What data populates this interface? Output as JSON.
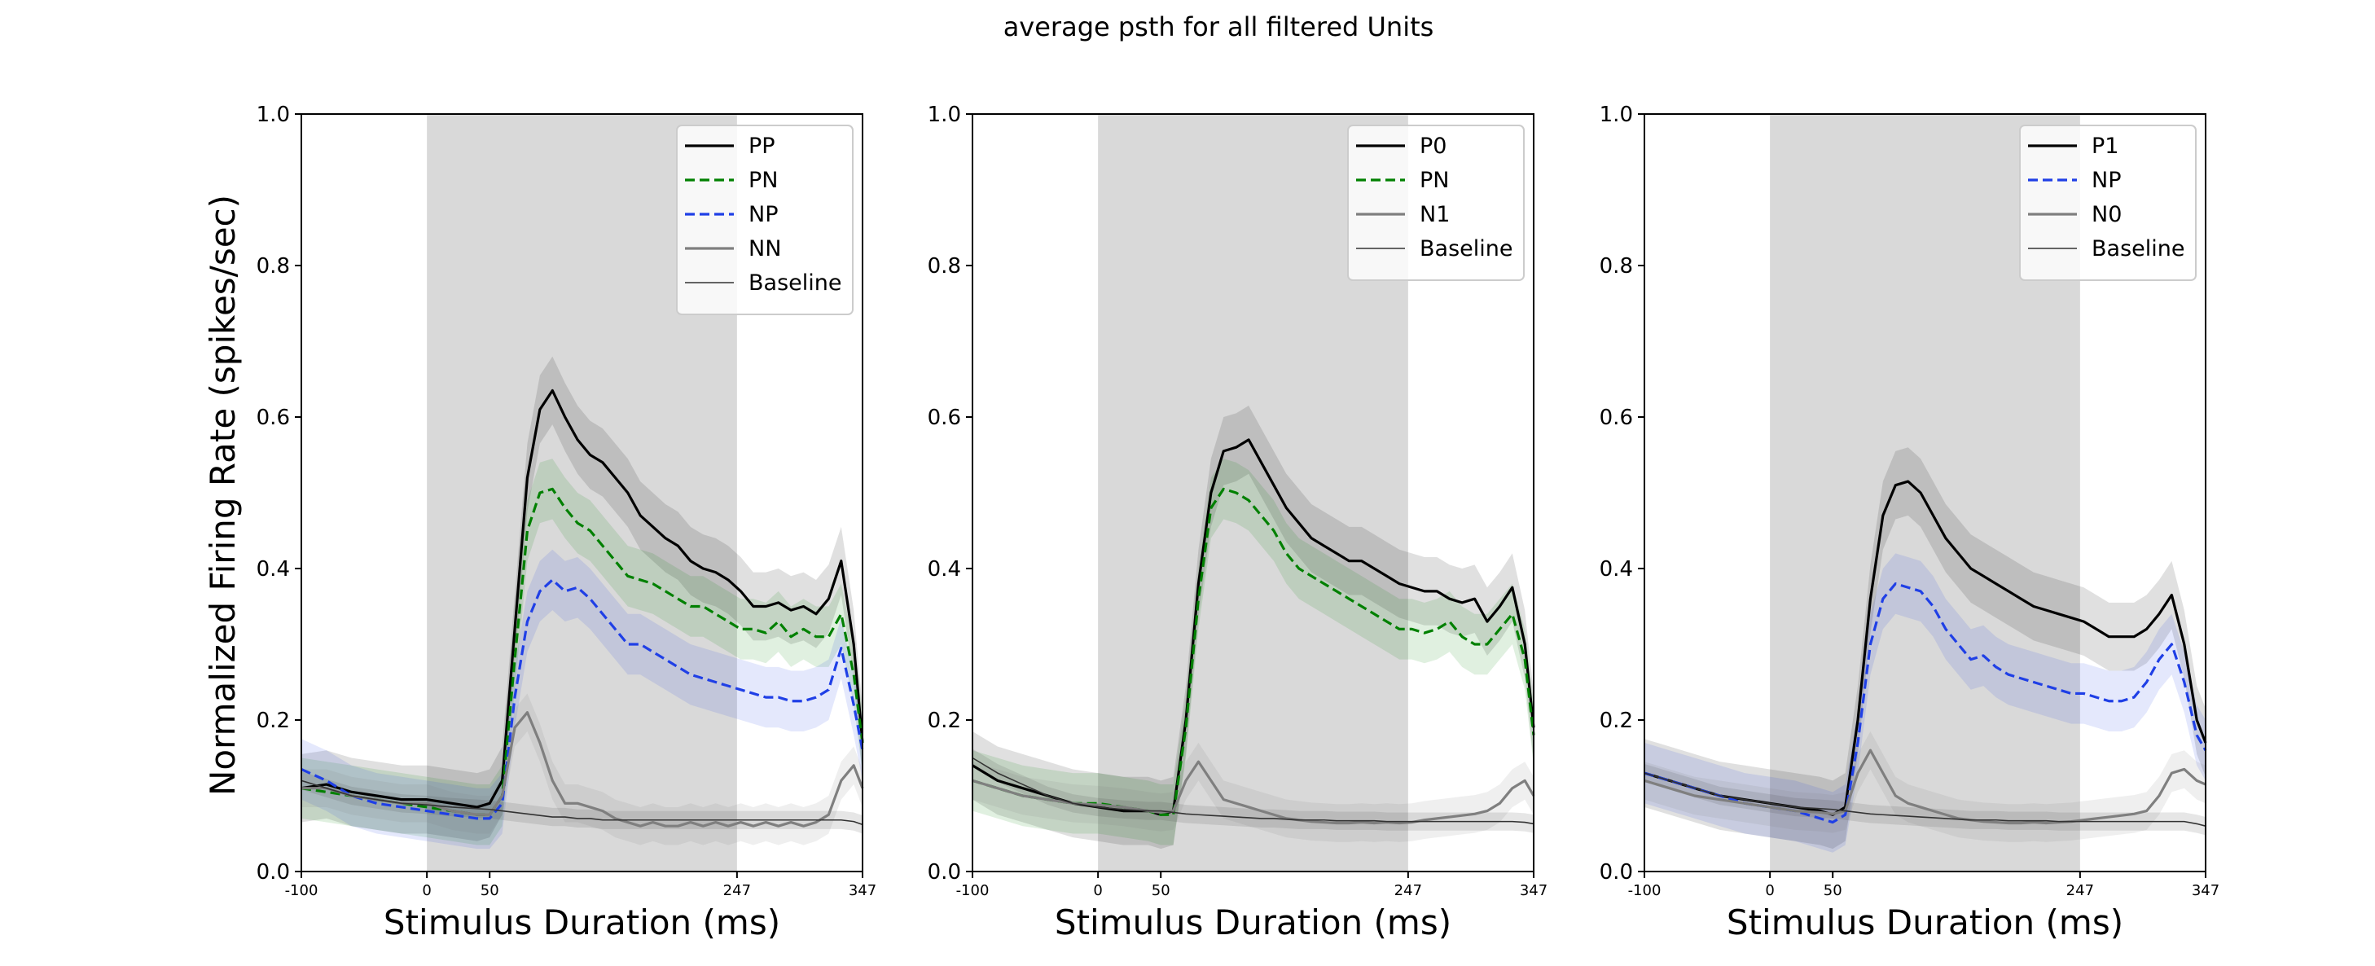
{
  "suptitle": "average psth for all filtered Units",
  "ylabel": "Normalized Firing Rate (spikes/sec)",
  "colors": {
    "black": "#000000",
    "green": "#008000",
    "blue": "#1f3fe6",
    "gray": "#7f7f7f",
    "baseline": "#333333",
    "shade": "#d9d9d9"
  },
  "chart_data": [
    {
      "type": "line",
      "title": "",
      "xlabel": "Stimulus Duration (ms)",
      "ylabel": "Normalized Firing Rate (spikes/sec)",
      "xlim": [
        -100,
        347
      ],
      "ylim": [
        0.0,
        1.0
      ],
      "xticks": [
        -100,
        0,
        50,
        247,
        347
      ],
      "yticks": [
        0.0,
        0.2,
        0.4,
        0.6,
        0.8,
        1.0
      ],
      "stimulus_window": [
        0,
        247
      ],
      "legend_position": "upper right",
      "x": [
        -100,
        -80,
        -60,
        -40,
        -20,
        0,
        20,
        40,
        50,
        60,
        70,
        80,
        90,
        100,
        110,
        120,
        130,
        140,
        150,
        160,
        170,
        180,
        190,
        200,
        210,
        220,
        230,
        240,
        250,
        260,
        270,
        280,
        290,
        300,
        310,
        320,
        330,
        340,
        347
      ],
      "series": [
        {
          "name": "PP",
          "style": "solid",
          "color": "black",
          "width": 3.2,
          "y": [
            0.11,
            0.115,
            0.105,
            0.1,
            0.095,
            0.095,
            0.09,
            0.085,
            0.09,
            0.12,
            0.32,
            0.52,
            0.61,
            0.635,
            0.6,
            0.57,
            0.55,
            0.54,
            0.52,
            0.5,
            0.47,
            0.455,
            0.44,
            0.43,
            0.41,
            0.4,
            0.395,
            0.385,
            0.37,
            0.35,
            0.35,
            0.355,
            0.345,
            0.35,
            0.34,
            0.36,
            0.41,
            0.3,
            0.17
          ]
        },
        {
          "name": "PN",
          "style": "dashed",
          "color": "green",
          "width": 3.2,
          "y": [
            0.11,
            0.105,
            0.1,
            0.095,
            0.09,
            0.085,
            0.08,
            0.075,
            0.075,
            0.1,
            0.28,
            0.45,
            0.5,
            0.505,
            0.48,
            0.46,
            0.45,
            0.43,
            0.41,
            0.39,
            0.385,
            0.38,
            0.37,
            0.36,
            0.35,
            0.35,
            0.34,
            0.33,
            0.32,
            0.32,
            0.315,
            0.33,
            0.31,
            0.32,
            0.31,
            0.31,
            0.34,
            0.26,
            0.17
          ]
        },
        {
          "name": "NP",
          "style": "dashed",
          "color": "blue",
          "width": 3.2,
          "y": [
            0.135,
            0.12,
            0.1,
            0.09,
            0.085,
            0.08,
            0.075,
            0.07,
            0.07,
            0.09,
            0.23,
            0.33,
            0.37,
            0.385,
            0.37,
            0.375,
            0.36,
            0.34,
            0.32,
            0.3,
            0.3,
            0.29,
            0.28,
            0.27,
            0.26,
            0.255,
            0.25,
            0.245,
            0.24,
            0.235,
            0.23,
            0.23,
            0.225,
            0.225,
            0.23,
            0.24,
            0.295,
            0.22,
            0.16
          ]
        },
        {
          "name": "NN",
          "style": "solid",
          "color": "gray",
          "width": 3.2,
          "y": [
            0.11,
            0.11,
            0.1,
            0.095,
            0.09,
            0.09,
            0.08,
            0.075,
            0.075,
            0.1,
            0.19,
            0.21,
            0.17,
            0.12,
            0.09,
            0.09,
            0.085,
            0.08,
            0.07,
            0.065,
            0.06,
            0.065,
            0.06,
            0.06,
            0.065,
            0.06,
            0.065,
            0.06,
            0.065,
            0.06,
            0.065,
            0.06,
            0.065,
            0.06,
            0.065,
            0.075,
            0.12,
            0.14,
            0.11
          ]
        },
        {
          "name": "Baseline",
          "style": "solid",
          "color": "baseline",
          "width": 1.6,
          "y": [
            0.12,
            0.11,
            0.1,
            0.095,
            0.09,
            0.088,
            0.085,
            0.083,
            0.082,
            0.08,
            0.078,
            0.076,
            0.074,
            0.072,
            0.072,
            0.07,
            0.07,
            0.068,
            0.068,
            0.068,
            0.068,
            0.068,
            0.068,
            0.068,
            0.068,
            0.068,
            0.068,
            0.068,
            0.068,
            0.068,
            0.068,
            0.068,
            0.068,
            0.068,
            0.068,
            0.068,
            0.068,
            0.066,
            0.062
          ]
        }
      ]
    },
    {
      "type": "line",
      "title": "",
      "xlabel": "Stimulus Duration (ms)",
      "ylabel": "",
      "xlim": [
        -100,
        347
      ],
      "ylim": [
        0.0,
        1.0
      ],
      "xticks": [
        -100,
        0,
        50,
        247,
        347
      ],
      "yticks": [
        0.0,
        0.2,
        0.4,
        0.6,
        0.8,
        1.0
      ],
      "stimulus_window": [
        0,
        247
      ],
      "legend_position": "upper right",
      "x": [
        -100,
        -80,
        -60,
        -40,
        -20,
        0,
        20,
        40,
        50,
        60,
        70,
        80,
        90,
        100,
        110,
        120,
        130,
        140,
        150,
        160,
        170,
        180,
        190,
        200,
        210,
        220,
        230,
        240,
        250,
        260,
        270,
        280,
        290,
        300,
        310,
        320,
        330,
        340,
        347
      ],
      "series": [
        {
          "name": "P0",
          "style": "solid",
          "color": "black",
          "width": 3.2,
          "y": [
            0.14,
            0.12,
            0.11,
            0.1,
            0.09,
            0.085,
            0.08,
            0.08,
            0.075,
            0.08,
            0.2,
            0.38,
            0.5,
            0.555,
            0.56,
            0.57,
            0.54,
            0.51,
            0.48,
            0.46,
            0.44,
            0.43,
            0.42,
            0.41,
            0.41,
            0.4,
            0.39,
            0.38,
            0.375,
            0.37,
            0.37,
            0.36,
            0.355,
            0.36,
            0.33,
            0.35,
            0.375,
            0.3,
            0.19
          ]
        },
        {
          "name": "PN",
          "style": "dashed",
          "color": "green",
          "width": 3.2,
          "y": [
            0.12,
            0.11,
            0.1,
            0.095,
            0.09,
            0.09,
            0.085,
            0.08,
            0.075,
            0.075,
            0.19,
            0.36,
            0.48,
            0.505,
            0.5,
            0.49,
            0.47,
            0.45,
            0.42,
            0.4,
            0.39,
            0.38,
            0.37,
            0.36,
            0.35,
            0.34,
            0.33,
            0.32,
            0.32,
            0.315,
            0.32,
            0.33,
            0.31,
            0.3,
            0.3,
            0.32,
            0.34,
            0.28,
            0.18
          ]
        },
        {
          "name": "N1",
          "style": "solid",
          "color": "gray",
          "width": 3.2,
          "y": [
            0.12,
            0.11,
            0.1,
            0.095,
            0.09,
            0.088,
            0.085,
            0.08,
            0.078,
            0.08,
            0.12,
            0.145,
            0.12,
            0.095,
            0.09,
            0.085,
            0.08,
            0.075,
            0.07,
            0.068,
            0.066,
            0.065,
            0.064,
            0.064,
            0.065,
            0.064,
            0.065,
            0.064,
            0.065,
            0.068,
            0.07,
            0.072,
            0.074,
            0.076,
            0.08,
            0.09,
            0.11,
            0.12,
            0.1
          ]
        },
        {
          "name": "Baseline",
          "style": "solid",
          "color": "baseline",
          "width": 1.6,
          "y": [
            0.15,
            0.13,
            0.115,
            0.1,
            0.09,
            0.085,
            0.082,
            0.08,
            0.08,
            0.078,
            0.076,
            0.075,
            0.074,
            0.073,
            0.072,
            0.071,
            0.07,
            0.07,
            0.069,
            0.068,
            0.068,
            0.068,
            0.067,
            0.067,
            0.067,
            0.067,
            0.066,
            0.066,
            0.066,
            0.066,
            0.066,
            0.066,
            0.066,
            0.066,
            0.066,
            0.066,
            0.066,
            0.065,
            0.063
          ]
        }
      ]
    },
    {
      "type": "line",
      "title": "",
      "xlabel": "Stimulus Duration (ms)",
      "ylabel": "",
      "xlim": [
        -100,
        347
      ],
      "ylim": [
        0.0,
        1.0
      ],
      "xticks": [
        -100,
        0,
        50,
        247,
        347
      ],
      "yticks": [
        0.0,
        0.2,
        0.4,
        0.6,
        0.8,
        1.0
      ],
      "stimulus_window": [
        0,
        247
      ],
      "legend_position": "upper right",
      "x": [
        -100,
        -80,
        -60,
        -40,
        -20,
        0,
        20,
        40,
        50,
        60,
        70,
        80,
        90,
        100,
        110,
        120,
        130,
        140,
        150,
        160,
        170,
        180,
        190,
        200,
        210,
        220,
        230,
        240,
        250,
        260,
        270,
        280,
        290,
        300,
        310,
        320,
        330,
        340,
        347
      ],
      "series": [
        {
          "name": "P1",
          "style": "solid",
          "color": "black",
          "width": 3.2,
          "y": [
            0.13,
            0.12,
            0.11,
            0.1,
            0.095,
            0.09,
            0.085,
            0.08,
            0.075,
            0.085,
            0.2,
            0.36,
            0.47,
            0.51,
            0.515,
            0.5,
            0.47,
            0.44,
            0.42,
            0.4,
            0.39,
            0.38,
            0.37,
            0.36,
            0.35,
            0.345,
            0.34,
            0.335,
            0.33,
            0.32,
            0.31,
            0.31,
            0.31,
            0.32,
            0.34,
            0.365,
            0.3,
            0.2,
            0.17
          ]
        },
        {
          "name": "NP",
          "style": "dashed",
          "color": "blue",
          "width": 3.2,
          "y": [
            0.13,
            0.12,
            0.11,
            0.1,
            0.09,
            0.085,
            0.08,
            0.07,
            0.065,
            0.075,
            0.17,
            0.3,
            0.36,
            0.38,
            0.375,
            0.37,
            0.35,
            0.32,
            0.3,
            0.28,
            0.285,
            0.27,
            0.26,
            0.255,
            0.25,
            0.245,
            0.24,
            0.235,
            0.235,
            0.23,
            0.225,
            0.225,
            0.23,
            0.25,
            0.28,
            0.3,
            0.25,
            0.18,
            0.16
          ]
        },
        {
          "name": "N0",
          "style": "solid",
          "color": "gray",
          "width": 3.2,
          "y": [
            0.12,
            0.11,
            0.1,
            0.095,
            0.09,
            0.085,
            0.08,
            0.078,
            0.076,
            0.08,
            0.13,
            0.16,
            0.13,
            0.1,
            0.09,
            0.085,
            0.08,
            0.075,
            0.07,
            0.068,
            0.066,
            0.065,
            0.064,
            0.064,
            0.065,
            0.064,
            0.065,
            0.066,
            0.068,
            0.07,
            0.072,
            0.074,
            0.076,
            0.08,
            0.1,
            0.13,
            0.135,
            0.12,
            0.115
          ]
        },
        {
          "name": "Baseline",
          "style": "solid",
          "color": "baseline",
          "width": 1.6,
          "y": [
            0.13,
            0.12,
            0.11,
            0.1,
            0.095,
            0.09,
            0.085,
            0.083,
            0.082,
            0.08,
            0.078,
            0.076,
            0.075,
            0.074,
            0.073,
            0.072,
            0.071,
            0.07,
            0.069,
            0.068,
            0.068,
            0.068,
            0.067,
            0.067,
            0.067,
            0.067,
            0.066,
            0.066,
            0.066,
            0.066,
            0.066,
            0.066,
            0.066,
            0.066,
            0.066,
            0.066,
            0.066,
            0.063,
            0.06
          ]
        }
      ]
    }
  ]
}
